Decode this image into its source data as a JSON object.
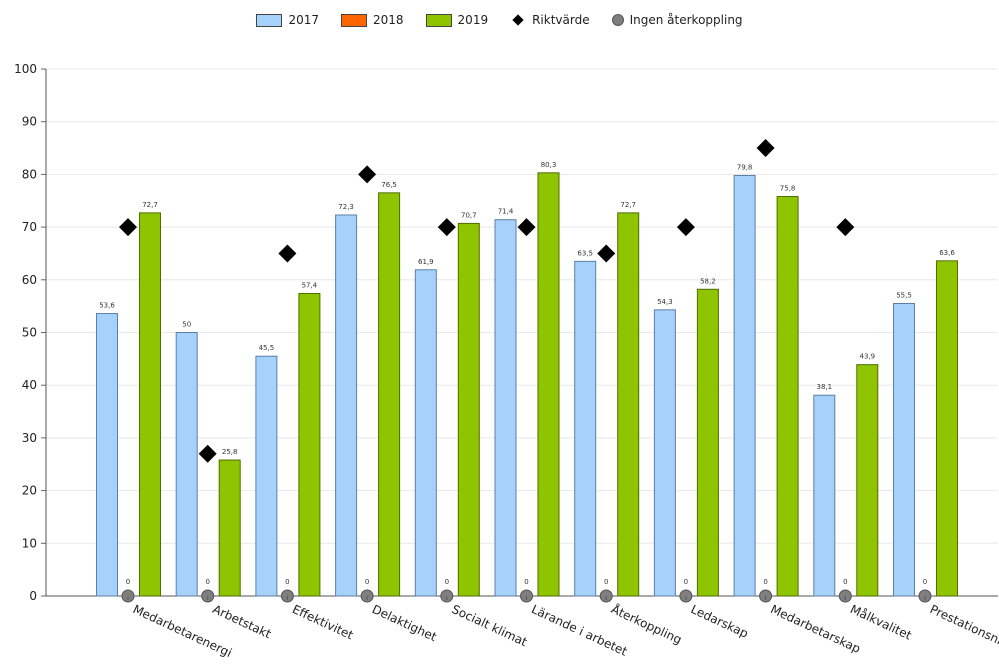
{
  "legend": {
    "s2017": "2017",
    "s2018": "2018",
    "s2019": "2019",
    "target": "Riktvärde",
    "nofeedback": "Ingen återkoppling"
  },
  "colors": {
    "s2017": "#a6d1fb",
    "s2018": "#ff6600",
    "s2019": "#8ec400",
    "target": "#000000",
    "nofeedback": "#7f7f7f"
  },
  "chart_data": {
    "type": "bar",
    "title": "",
    "xlabel": "",
    "ylabel": "",
    "ylim": [
      0,
      100
    ],
    "yticks": [
      0,
      10,
      20,
      30,
      40,
      50,
      60,
      70,
      80,
      90,
      100
    ],
    "grid": true,
    "legend_position": "top",
    "categories": [
      "Medarbetarenergi",
      "Arbetstakt",
      "Effektivitet",
      "Delaktighet",
      "Socialt klimat",
      "Lärande i arbetet",
      "Återkoppling",
      "Ledarskap",
      "Medarbetarskap",
      "Målkvalitet",
      "Prestationsnivå"
    ],
    "series": [
      {
        "name": "2017",
        "values": [
          53.6,
          50,
          45.5,
          72.3,
          61.9,
          71.4,
          63.5,
          54.3,
          79.8,
          38.1,
          55.5
        ],
        "labels": [
          "53,6",
          "50",
          "45,5",
          "72,3",
          "61,9",
          "71,4",
          "63,5",
          "54,3",
          "79,8",
          "38,1",
          "55,5"
        ]
      },
      {
        "name": "2018",
        "values": [
          0,
          0,
          0,
          0,
          0,
          0,
          0,
          0,
          0,
          0,
          0
        ],
        "labels": [
          "0",
          "0",
          "0",
          "0",
          "0",
          "0",
          "0",
          "0",
          "0",
          "0",
          "0"
        ]
      },
      {
        "name": "2019",
        "values": [
          72.7,
          25.8,
          57.4,
          76.5,
          70.7,
          80.3,
          72.7,
          58.2,
          75.8,
          43.9,
          63.6
        ],
        "labels": [
          "72,7",
          "25,8",
          "57,4",
          "76,5",
          "70,7",
          "80,3",
          "72,7",
          "58,2",
          "75,8",
          "43,9",
          "63,6"
        ]
      },
      {
        "name": "Riktvärde",
        "values": [
          70,
          27,
          65,
          80,
          70,
          70,
          65,
          70,
          85,
          70,
          null
        ]
      }
    ]
  }
}
